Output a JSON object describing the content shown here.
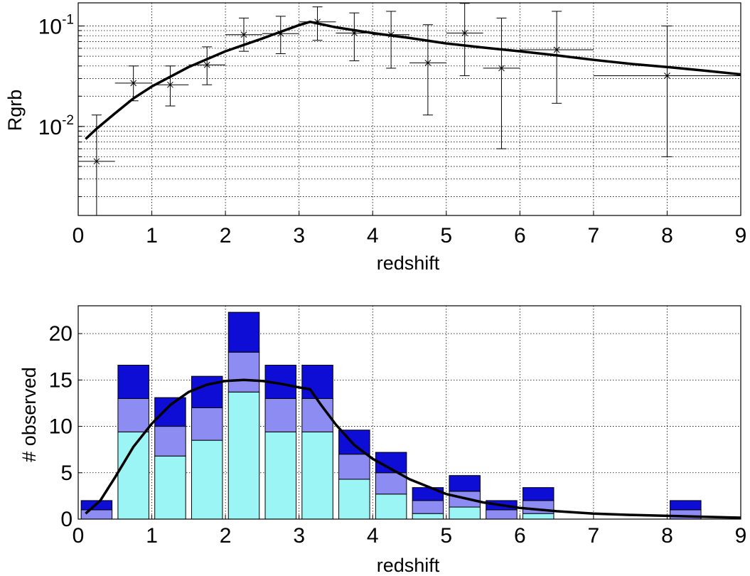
{
  "colors": {
    "bar_top": "#0d0dd6",
    "bar_mid": "#8c8cf2",
    "bar_low": "#9cf5f5",
    "line": "#000000"
  },
  "chart_data": [
    {
      "type": "line",
      "title": "",
      "xlabel": "redshift",
      "ylabel": "Rgrb",
      "yscale": "log",
      "xlim": [
        0,
        9
      ],
      "ylim": [
        0.0013,
        0.17
      ],
      "xticks": [
        0,
        1,
        2,
        3,
        4,
        5,
        6,
        7,
        8,
        9
      ],
      "ytick_labels": [
        {
          "value": 0.1,
          "base": "10",
          "exp": "-1"
        },
        {
          "value": 0.01,
          "base": "10",
          "exp": "-2"
        }
      ],
      "grid": true,
      "points": [
        {
          "x": 0.25,
          "y": 0.0045,
          "xerr": [
            0.25,
            0.25
          ],
          "ylo": 0.0012,
          "yhi": 0.013
        },
        {
          "x": 0.75,
          "y": 0.027,
          "xerr": [
            0.25,
            0.25
          ],
          "ylo": 0.018,
          "yhi": 0.04
        },
        {
          "x": 1.25,
          "y": 0.026,
          "xerr": [
            0.25,
            0.25
          ],
          "ylo": 0.016,
          "yhi": 0.04
        },
        {
          "x": 1.75,
          "y": 0.041,
          "xerr": [
            0.25,
            0.25
          ],
          "ylo": 0.026,
          "yhi": 0.062
        },
        {
          "x": 2.25,
          "y": 0.082,
          "xerr": [
            0.25,
            0.25
          ],
          "ylo": 0.056,
          "yhi": 0.12
        },
        {
          "x": 2.75,
          "y": 0.084,
          "xerr": [
            0.25,
            0.25
          ],
          "ylo": 0.053,
          "yhi": 0.125
        },
        {
          "x": 3.25,
          "y": 0.11,
          "xerr": [
            0.25,
            0.25
          ],
          "ylo": 0.072,
          "yhi": 0.155
        },
        {
          "x": 3.75,
          "y": 0.085,
          "xerr": [
            0.25,
            0.25
          ],
          "ylo": 0.045,
          "yhi": 0.135
        },
        {
          "x": 4.25,
          "y": 0.082,
          "xerr": [
            0.25,
            0.25
          ],
          "ylo": 0.038,
          "yhi": 0.14
        },
        {
          "x": 4.75,
          "y": 0.043,
          "xerr": [
            0.25,
            0.25
          ],
          "ylo": 0.013,
          "yhi": 0.103
        },
        {
          "x": 5.25,
          "y": 0.085,
          "xerr": [
            0.25,
            0.25
          ],
          "ylo": 0.032,
          "yhi": 0.168
        },
        {
          "x": 5.75,
          "y": 0.038,
          "xerr": [
            0.25,
            0.25
          ],
          "ylo": 0.006,
          "yhi": 0.12
        },
        {
          "x": 6.5,
          "y": 0.058,
          "xerr": [
            0.5,
            0.5
          ],
          "ylo": 0.017,
          "yhi": 0.14
        },
        {
          "x": 8.0,
          "y": 0.032,
          "xerr": [
            1.0,
            1.0
          ],
          "ylo": 0.005,
          "yhi": 0.1
        }
      ],
      "model_line": {
        "x": [
          0.1,
          0.25,
          0.5,
          0.75,
          1.0,
          1.5,
          2.0,
          2.5,
          3.0,
          3.15,
          3.5,
          4.0,
          4.5,
          5.0,
          5.5,
          6.0,
          6.5,
          7.0,
          7.5,
          8.0,
          8.5,
          9.0
        ],
        "y": [
          0.0075,
          0.0095,
          0.0135,
          0.019,
          0.025,
          0.039,
          0.056,
          0.075,
          0.102,
          0.11,
          0.097,
          0.085,
          0.076,
          0.067,
          0.061,
          0.056,
          0.051,
          0.046,
          0.042,
          0.039,
          0.036,
          0.033
        ]
      }
    },
    {
      "type": "bar",
      "stacked": true,
      "title": "",
      "xlabel": "redshift",
      "ylabel": "# observed",
      "xlim": [
        0,
        9
      ],
      "ylim": [
        0,
        23
      ],
      "xticks": [
        0,
        1,
        2,
        3,
        4,
        5,
        6,
        7,
        8,
        9
      ],
      "yticks": [
        0,
        5,
        10,
        15,
        20
      ],
      "grid": true,
      "bar_width": 0.42,
      "bars": [
        {
          "x": 0.25,
          "low": 0.0,
          "mid": 1.0,
          "top": 2.0
        },
        {
          "x": 0.75,
          "low": 9.4,
          "mid": 13.0,
          "top": 16.6
        },
        {
          "x": 1.25,
          "low": 6.8,
          "mid": 10.0,
          "top": 13.1
        },
        {
          "x": 1.75,
          "low": 8.5,
          "mid": 12.0,
          "top": 15.4
        },
        {
          "x": 2.25,
          "low": 13.7,
          "mid": 18.0,
          "top": 22.3
        },
        {
          "x": 2.75,
          "low": 9.4,
          "mid": 13.0,
          "top": 16.6
        },
        {
          "x": 3.25,
          "low": 9.4,
          "mid": 13.0,
          "top": 16.6
        },
        {
          "x": 3.75,
          "low": 4.3,
          "mid": 7.0,
          "top": 9.6
        },
        {
          "x": 4.25,
          "low": 2.7,
          "mid": 5.0,
          "top": 7.2
        },
        {
          "x": 4.75,
          "low": 0.6,
          "mid": 2.0,
          "top": 3.4
        },
        {
          "x": 5.25,
          "low": 1.3,
          "mid": 3.0,
          "top": 4.7
        },
        {
          "x": 5.75,
          "low": 0.0,
          "mid": 1.0,
          "top": 2.0
        },
        {
          "x": 6.25,
          "low": 0.6,
          "mid": 2.0,
          "top": 3.4
        },
        {
          "x": 8.25,
          "low": 0.0,
          "mid": 1.0,
          "top": 2.0
        }
      ],
      "model_line": {
        "x": [
          0.1,
          0.3,
          0.5,
          0.75,
          1.0,
          1.25,
          1.5,
          1.75,
          2.0,
          2.25,
          2.5,
          2.75,
          3.0,
          3.15,
          3.3,
          3.5,
          3.75,
          4.0,
          4.5,
          5.0,
          5.5,
          6.0,
          6.5,
          7.0,
          7.5,
          8.0,
          8.5,
          9.0
        ],
        "y": [
          0.6,
          2.0,
          4.5,
          7.8,
          10.3,
          12.3,
          13.7,
          14.5,
          14.9,
          15.0,
          14.9,
          14.6,
          14.2,
          14.0,
          12.3,
          10.2,
          8.0,
          6.5,
          4.3,
          2.7,
          1.8,
          1.2,
          0.85,
          0.6,
          0.45,
          0.35,
          0.25,
          0.15
        ]
      }
    }
  ]
}
